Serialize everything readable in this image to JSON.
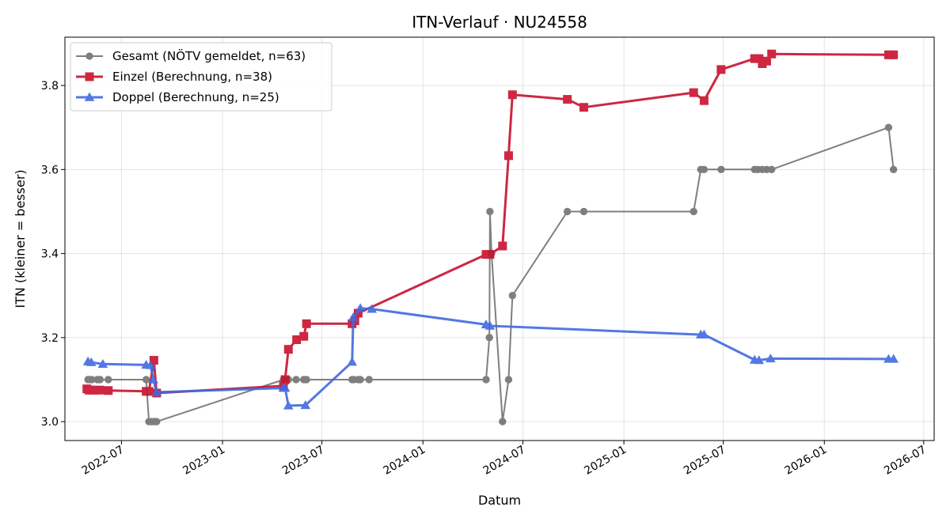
{
  "chart_data": {
    "type": "line",
    "title": "ITN-Verlauf · NU24558",
    "xlabel": "Datum",
    "ylabel": "ITN  (kleiner = besser)",
    "x_axis": "date",
    "xlim": [
      "2022-03-20",
      "2026-07-20"
    ],
    "ylim": [
      2.955,
      3.915
    ],
    "grid": true,
    "legend_position": "upper-left",
    "x_ticks": [
      "2022-07",
      "2023-01",
      "2023-07",
      "2024-01",
      "2024-07",
      "2025-01",
      "2025-07",
      "2026-01",
      "2026-07"
    ],
    "y_ticks": [
      3.0,
      3.2,
      3.4,
      3.6,
      3.8
    ],
    "y_tick_labels": [
      "3.0",
      "3.2",
      "3.4",
      "3.6",
      "3.8"
    ],
    "series": [
      {
        "name": "Gesamt (NÖTV gemeldet, n=63)",
        "color": "#555555",
        "marker": "circle",
        "line_width": 2,
        "opacity": 0.75,
        "points": [
          [
            "2022-05-01",
            3.1
          ],
          [
            "2022-05-05",
            3.1
          ],
          [
            "2022-05-08",
            3.1
          ],
          [
            "2022-05-18",
            3.1
          ],
          [
            "2022-05-23",
            3.1
          ],
          [
            "2022-06-07",
            3.1
          ],
          [
            "2022-08-15",
            3.1
          ],
          [
            "2022-08-20",
            3.0
          ],
          [
            "2022-08-25",
            3.0
          ],
          [
            "2022-08-30",
            3.0
          ],
          [
            "2022-09-03",
            3.0
          ],
          [
            "2023-04-22",
            3.1
          ],
          [
            "2023-05-01",
            3.1
          ],
          [
            "2023-05-15",
            3.1
          ],
          [
            "2023-05-29",
            3.1
          ],
          [
            "2023-06-03",
            3.1
          ],
          [
            "2023-08-25",
            3.1
          ],
          [
            "2023-08-28",
            3.1
          ],
          [
            "2023-09-05",
            3.1
          ],
          [
            "2023-09-09",
            3.1
          ],
          [
            "2023-09-25",
            3.1
          ],
          [
            "2024-04-25",
            3.1
          ],
          [
            "2024-05-01",
            3.2
          ],
          [
            "2024-05-02",
            3.5
          ],
          [
            "2024-05-05",
            3.4
          ],
          [
            "2024-05-25",
            3.0
          ],
          [
            "2024-06-05",
            3.1
          ],
          [
            "2024-06-12",
            3.3
          ],
          [
            "2024-09-20",
            3.5
          ],
          [
            "2024-10-20",
            3.5
          ],
          [
            "2025-05-08",
            3.5
          ],
          [
            "2025-05-21",
            3.6
          ],
          [
            "2025-05-27",
            3.6
          ],
          [
            "2025-06-27",
            3.6
          ],
          [
            "2025-08-27",
            3.6
          ],
          [
            "2025-09-02",
            3.6
          ],
          [
            "2025-09-10",
            3.6
          ],
          [
            "2025-09-18",
            3.6
          ],
          [
            "2025-09-27",
            3.6
          ],
          [
            "2026-04-28",
            3.7
          ],
          [
            "2026-05-07",
            3.6
          ]
        ]
      },
      {
        "name": "Einzel (Berechnung, n=38)",
        "color": "#c8102e",
        "marker": "square",
        "line_width": 3,
        "opacity": 0.9,
        "points": [
          [
            "2022-04-29",
            3.078
          ],
          [
            "2022-05-03",
            3.075
          ],
          [
            "2022-05-08",
            3.075
          ],
          [
            "2022-05-14",
            3.075
          ],
          [
            "2022-05-23",
            3.075
          ],
          [
            "2022-06-07",
            3.074
          ],
          [
            "2022-08-15",
            3.072
          ],
          [
            "2022-08-20",
            3.072
          ],
          [
            "2022-08-29",
            3.146
          ],
          [
            "2022-09-03",
            3.068
          ],
          [
            "2023-04-22",
            3.085
          ],
          [
            "2023-04-25",
            3.1
          ],
          [
            "2023-05-01",
            3.172
          ],
          [
            "2023-05-16",
            3.195
          ],
          [
            "2023-05-29",
            3.203
          ],
          [
            "2023-06-03",
            3.233
          ],
          [
            "2023-08-25",
            3.233
          ],
          [
            "2023-08-30",
            3.24
          ],
          [
            "2023-09-05",
            3.258
          ],
          [
            "2024-04-25",
            3.398
          ],
          [
            "2024-05-02",
            3.398
          ],
          [
            "2024-05-25",
            3.418
          ],
          [
            "2024-06-05",
            3.633
          ],
          [
            "2024-06-12",
            3.778
          ],
          [
            "2024-09-20",
            3.767
          ],
          [
            "2024-10-20",
            3.748
          ],
          [
            "2025-05-08",
            3.783
          ],
          [
            "2025-05-27",
            3.764
          ],
          [
            "2025-06-27",
            3.838
          ],
          [
            "2025-08-27",
            3.864
          ],
          [
            "2025-09-04",
            3.864
          ],
          [
            "2025-09-10",
            3.852
          ],
          [
            "2025-09-18",
            3.858
          ],
          [
            "2025-09-27",
            3.875
          ],
          [
            "2026-04-28",
            3.873
          ],
          [
            "2026-05-07",
            3.873
          ]
        ]
      },
      {
        "name": "Doppel (Berechnung, n=25)",
        "color": "#4169e1",
        "marker": "triangle",
        "line_width": 3,
        "opacity": 0.9,
        "points": [
          [
            "2022-05-01",
            3.143
          ],
          [
            "2022-05-07",
            3.141
          ],
          [
            "2022-05-28",
            3.137
          ],
          [
            "2022-08-15",
            3.135
          ],
          [
            "2022-08-23",
            3.134
          ],
          [
            "2022-08-28",
            3.1
          ],
          [
            "2022-09-03",
            3.07
          ],
          [
            "2023-04-22",
            3.08
          ],
          [
            "2023-04-25",
            3.08
          ],
          [
            "2023-05-01",
            3.038
          ],
          [
            "2023-06-01",
            3.039
          ],
          [
            "2023-08-25",
            3.142
          ],
          [
            "2023-08-27",
            3.248
          ],
          [
            "2023-09-09",
            3.27
          ],
          [
            "2023-09-30",
            3.268
          ],
          [
            "2024-04-25",
            3.231
          ],
          [
            "2024-05-02",
            3.228
          ],
          [
            "2025-05-21",
            3.207
          ],
          [
            "2025-05-27",
            3.207
          ],
          [
            "2025-08-27",
            3.147
          ],
          [
            "2025-09-04",
            3.146
          ],
          [
            "2025-09-25",
            3.15
          ],
          [
            "2026-04-28",
            3.149
          ],
          [
            "2026-05-07",
            3.149
          ]
        ]
      }
    ]
  }
}
